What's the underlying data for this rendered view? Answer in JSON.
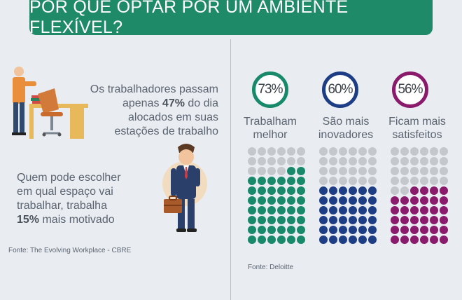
{
  "banner": {
    "title": "POR QUE OPTAR POR UM AMBIENTE FLEXÍVEL?"
  },
  "left": {
    "stat1": {
      "line1": "Os trabalhadores passam",
      "line2_pre": "apenas ",
      "line2_bold": "47%",
      "line2_post": " do dia",
      "line3": "alocados em suas",
      "line4": "estações de trabalho"
    },
    "stat2": {
      "line1": "Quem pode escolher",
      "line2": "em qual espaço vai",
      "line3": "trabalhar, trabalha",
      "line4_bold": "15%",
      "line4_post": " mais motivado"
    },
    "source": "Fonte: The Evolving Workplace - CBRE"
  },
  "right": {
    "source": "Fonte: Deloitte",
    "columns": [
      {
        "percent": "73%",
        "value": 73,
        "label1": "Trabalham",
        "label2": "melhor",
        "color": "#18896a"
      },
      {
        "percent": "60%",
        "value": 60,
        "label1": "São mais",
        "label2": "inovadores",
        "color": "#1d3d85"
      },
      {
        "percent": "56%",
        "value": 56,
        "label1": "Ficam mais",
        "label2": "satisfeitos",
        "color": "#8a1a6c"
      }
    ],
    "empty_color": "#c4c8cc"
  }
}
